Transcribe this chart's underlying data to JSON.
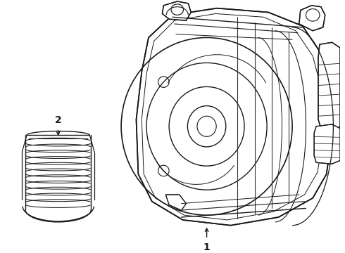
{
  "background_color": "#ffffff",
  "line_color": "#1a1a1a",
  "label_1": "1",
  "label_2": "2",
  "fig_width": 4.9,
  "fig_height": 3.6,
  "dpi": 100
}
